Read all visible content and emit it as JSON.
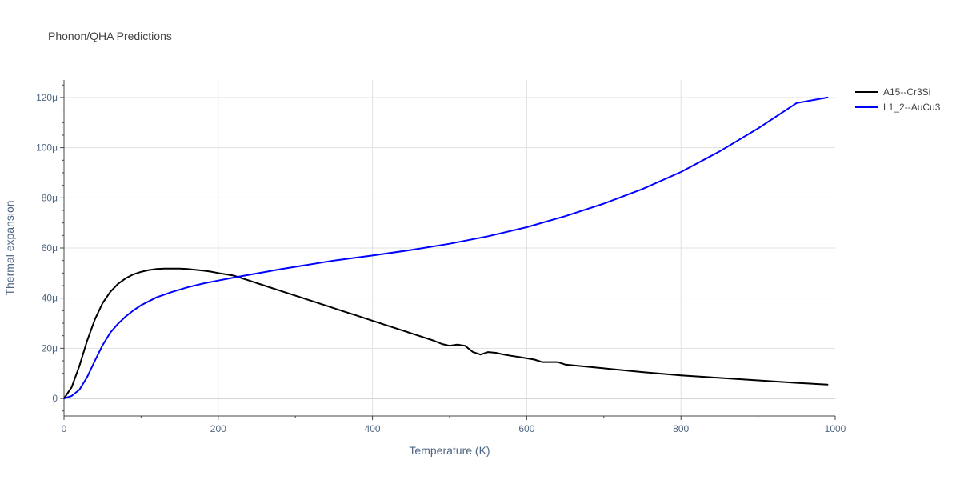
{
  "chart_data": {
    "type": "line",
    "title": "Phonon/QHA Predictions",
    "xlabel": "Temperature (K)",
    "ylabel": "Thermal expansion",
    "xlim": [
      0,
      1000
    ],
    "ylim": [
      -7e-06,
      0.000127
    ],
    "x_ticks": [
      0,
      200,
      400,
      600,
      800,
      1000
    ],
    "x_tick_labels": [
      "0",
      "200",
      "400",
      "600",
      "800",
      "1000"
    ],
    "y_ticks": [
      0,
      2e-05,
      4e-05,
      6e-05,
      8e-05,
      0.0001,
      0.00012
    ],
    "y_tick_labels": [
      "0",
      "20μ",
      "40μ",
      "60μ",
      "80μ",
      "100μ",
      "120μ"
    ],
    "grid": true,
    "legend_position": "top-right",
    "series": [
      {
        "name": "A15--Cr3Si",
        "color": "#000000",
        "x": [
          0,
          10,
          20,
          30,
          40,
          50,
          60,
          70,
          80,
          90,
          100,
          110,
          120,
          130,
          140,
          150,
          160,
          170,
          180,
          190,
          200,
          220,
          240,
          260,
          280,
          300,
          320,
          340,
          360,
          380,
          400,
          420,
          440,
          460,
          480,
          490,
          500,
          510,
          520,
          530,
          540,
          550,
          560,
          570,
          580,
          590,
          600,
          610,
          620,
          630,
          640,
          650,
          700,
          750,
          800,
          850,
          900,
          950,
          990
        ],
        "y": [
          0,
          4.5e-06,
          1.3e-05,
          2.3e-05,
          3.15e-05,
          3.8e-05,
          4.25e-05,
          4.57e-05,
          4.79e-05,
          4.95e-05,
          5.05e-05,
          5.12e-05,
          5.16e-05,
          5.18e-05,
          5.18e-05,
          5.18e-05,
          5.16e-05,
          5.13e-05,
          5.1e-05,
          5.06e-05,
          5e-05,
          4.9e-05,
          4.7e-05,
          4.5e-05,
          4.3e-05,
          4.1e-05,
          3.9e-05,
          3.7e-05,
          3.5e-05,
          3.3e-05,
          3.1e-05,
          2.9e-05,
          2.7e-05,
          2.5e-05,
          2.3e-05,
          2.17e-05,
          2.1e-05,
          2.15e-05,
          2.1e-05,
          1.855e-05,
          1.75e-05,
          1.85e-05,
          1.82e-05,
          1.75e-05,
          1.7e-05,
          1.65e-05,
          1.6e-05,
          1.55e-05,
          1.45e-05,
          1.45e-05,
          1.45e-05,
          1.35e-05,
          1.2e-05,
          1.05e-05,
          9.2e-06,
          8.2e-06,
          7.2e-06,
          6.2e-06,
          5.5e-06
        ]
      },
      {
        "name": "L1_2--AuCu3",
        "color": "#0000ff",
        "x": [
          0,
          10,
          20,
          30,
          40,
          50,
          60,
          70,
          80,
          90,
          100,
          120,
          140,
          160,
          180,
          200,
          220,
          240,
          260,
          280,
          300,
          350,
          400,
          450,
          500,
          550,
          600,
          650,
          700,
          750,
          800,
          850,
          900,
          950,
          990
        ],
        "y": [
          0,
          1e-06,
          3.5e-06,
          8.5e-06,
          1.5e-05,
          2.12e-05,
          2.62e-05,
          2.98e-05,
          3.27e-05,
          3.51e-05,
          3.72e-05,
          4.03e-05,
          4.25e-05,
          4.43e-05,
          4.58e-05,
          4.7e-05,
          4.82e-05,
          4.93e-05,
          5.04e-05,
          5.15e-05,
          5.25e-05,
          5.5e-05,
          5.7e-05,
          5.92e-05,
          6.17e-05,
          6.47e-05,
          6.83e-05,
          7.27e-05,
          7.77e-05,
          8.35e-05,
          9.03e-05,
          9.85e-05,
          0.0001077,
          0.0001178,
          0.00012
        ]
      }
    ]
  }
}
